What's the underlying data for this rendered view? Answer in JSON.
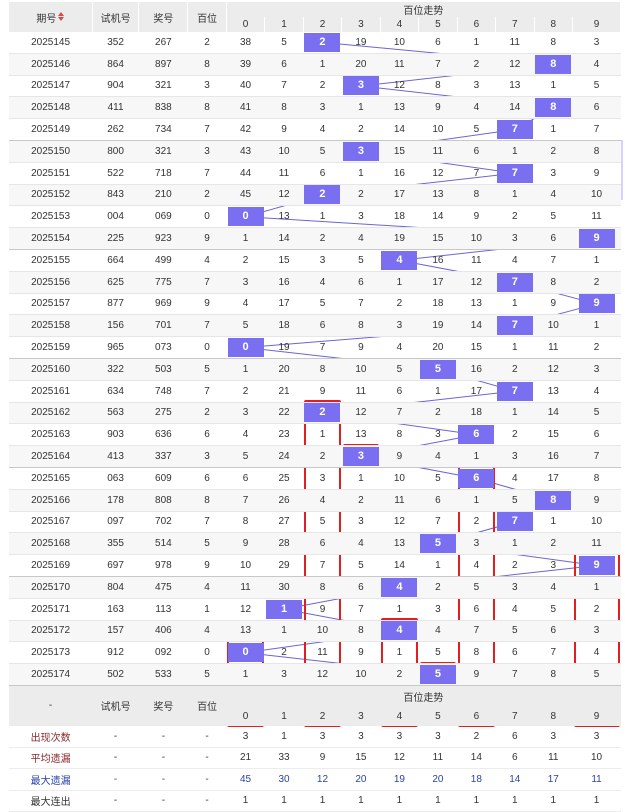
{
  "header": {
    "col_period": "期号",
    "col_test": "试机号",
    "col_prize": "奖号",
    "col_hundreds": "百位",
    "trend_title": "百位走势",
    "digits": [
      "0",
      "1",
      "2",
      "3",
      "4",
      "5",
      "6",
      "7",
      "8",
      "9"
    ]
  },
  "rows": [
    {
      "period": "2025145",
      "test": "352",
      "prize": "267",
      "h": "2",
      "cells": [
        "38",
        "5",
        "2",
        "19",
        "10",
        "6",
        "1",
        "11",
        "8",
        "3"
      ]
    },
    {
      "period": "2025146",
      "test": "864",
      "prize": "897",
      "h": "8",
      "cells": [
        "39",
        "6",
        "1",
        "20",
        "11",
        "7",
        "2",
        "12",
        "8",
        "4"
      ]
    },
    {
      "period": "2025147",
      "test": "904",
      "prize": "321",
      "h": "3",
      "cells": [
        "40",
        "7",
        "2",
        "3",
        "12",
        "8",
        "3",
        "13",
        "1",
        "5"
      ]
    },
    {
      "period": "2025148",
      "test": "411",
      "prize": "838",
      "h": "8",
      "cells": [
        "41",
        "8",
        "3",
        "1",
        "13",
        "9",
        "4",
        "14",
        "8",
        "6"
      ]
    },
    {
      "period": "2025149",
      "test": "262",
      "prize": "734",
      "h": "7",
      "cells": [
        "42",
        "9",
        "4",
        "2",
        "14",
        "10",
        "5",
        "7",
        "1",
        "7"
      ]
    },
    {
      "period": "2025150",
      "test": "800",
      "prize": "321",
      "h": "3",
      "cells": [
        "43",
        "10",
        "5",
        "3",
        "15",
        "11",
        "6",
        "1",
        "2",
        "8"
      ]
    },
    {
      "period": "2025151",
      "test": "522",
      "prize": "718",
      "h": "7",
      "cells": [
        "44",
        "11",
        "6",
        "1",
        "16",
        "12",
        "7",
        "7",
        "3",
        "9"
      ]
    },
    {
      "period": "2025152",
      "test": "843",
      "prize": "210",
      "h": "2",
      "cells": [
        "45",
        "12",
        "2",
        "2",
        "17",
        "13",
        "8",
        "1",
        "4",
        "10"
      ]
    },
    {
      "period": "2025153",
      "test": "004",
      "prize": "069",
      "h": "0",
      "cells": [
        "0",
        "13",
        "1",
        "3",
        "18",
        "14",
        "9",
        "2",
        "5",
        "11"
      ]
    },
    {
      "period": "2025154",
      "test": "225",
      "prize": "923",
      "h": "9",
      "cells": [
        "1",
        "14",
        "2",
        "4",
        "19",
        "15",
        "10",
        "3",
        "6",
        "9"
      ]
    },
    {
      "period": "2025155",
      "test": "664",
      "prize": "499",
      "h": "4",
      "cells": [
        "2",
        "15",
        "3",
        "5",
        "4",
        "16",
        "11",
        "4",
        "7",
        "1"
      ]
    },
    {
      "period": "2025156",
      "test": "625",
      "prize": "775",
      "h": "7",
      "cells": [
        "3",
        "16",
        "4",
        "6",
        "1",
        "17",
        "12",
        "7",
        "8",
        "2"
      ]
    },
    {
      "period": "2025157",
      "test": "877",
      "prize": "969",
      "h": "9",
      "cells": [
        "4",
        "17",
        "5",
        "7",
        "2",
        "18",
        "13",
        "1",
        "9",
        "9"
      ]
    },
    {
      "period": "2025158",
      "test": "156",
      "prize": "701",
      "h": "7",
      "cells": [
        "5",
        "18",
        "6",
        "8",
        "3",
        "19",
        "14",
        "7",
        "10",
        "1"
      ]
    },
    {
      "period": "2025159",
      "test": "965",
      "prize": "073",
      "h": "0",
      "cells": [
        "0",
        "19",
        "7",
        "9",
        "4",
        "20",
        "15",
        "1",
        "11",
        "2"
      ]
    },
    {
      "period": "2025160",
      "test": "322",
      "prize": "503",
      "h": "5",
      "cells": [
        "1",
        "20",
        "8",
        "10",
        "5",
        "5",
        "16",
        "2",
        "12",
        "3"
      ]
    },
    {
      "period": "2025161",
      "test": "634",
      "prize": "748",
      "h": "7",
      "cells": [
        "2",
        "21",
        "9",
        "11",
        "6",
        "1",
        "17",
        "7",
        "13",
        "4"
      ]
    },
    {
      "period": "2025162",
      "test": "563",
      "prize": "275",
      "h": "2",
      "cells": [
        "3",
        "22",
        "2",
        "12",
        "7",
        "2",
        "18",
        "1",
        "14",
        "5"
      ]
    },
    {
      "period": "2025163",
      "test": "903",
      "prize": "636",
      "h": "6",
      "cells": [
        "4",
        "23",
        "1",
        "13",
        "8",
        "3",
        "6",
        "2",
        "15",
        "6"
      ]
    },
    {
      "period": "2025164",
      "test": "413",
      "prize": "337",
      "h": "3",
      "cells": [
        "5",
        "24",
        "2",
        "3",
        "9",
        "4",
        "1",
        "3",
        "16",
        "7"
      ]
    },
    {
      "period": "2025165",
      "test": "063",
      "prize": "609",
      "h": "6",
      "cells": [
        "6",
        "25",
        "3",
        "1",
        "10",
        "5",
        "6",
        "4",
        "17",
        "8"
      ]
    },
    {
      "period": "2025166",
      "test": "178",
      "prize": "808",
      "h": "8",
      "cells": [
        "7",
        "26",
        "4",
        "2",
        "11",
        "6",
        "1",
        "5",
        "8",
        "9"
      ]
    },
    {
      "period": "2025167",
      "test": "097",
      "prize": "702",
      "h": "7",
      "cells": [
        "8",
        "27",
        "5",
        "3",
        "12",
        "7",
        "2",
        "7",
        "1",
        "10"
      ]
    },
    {
      "period": "2025168",
      "test": "355",
      "prize": "514",
      "h": "5",
      "cells": [
        "9",
        "28",
        "6",
        "4",
        "13",
        "5",
        "3",
        "1",
        "2",
        "11"
      ]
    },
    {
      "period": "2025169",
      "test": "697",
      "prize": "978",
      "h": "9",
      "cells": [
        "10",
        "29",
        "7",
        "5",
        "14",
        "1",
        "4",
        "2",
        "3",
        "9"
      ]
    },
    {
      "period": "2025170",
      "test": "804",
      "prize": "475",
      "h": "4",
      "cells": [
        "11",
        "30",
        "8",
        "6",
        "4",
        "2",
        "5",
        "3",
        "4",
        "1"
      ]
    },
    {
      "period": "2025171",
      "test": "163",
      "prize": "113",
      "h": "1",
      "cells": [
        "12",
        "1",
        "9",
        "7",
        "1",
        "3",
        "6",
        "4",
        "5",
        "2"
      ]
    },
    {
      "period": "2025172",
      "test": "157",
      "prize": "406",
      "h": "4",
      "cells": [
        "13",
        "1",
        "10",
        "8",
        "4",
        "4",
        "7",
        "5",
        "6",
        "3"
      ]
    },
    {
      "period": "2025173",
      "test": "912",
      "prize": "092",
      "h": "0",
      "cells": [
        "0",
        "2",
        "11",
        "9",
        "1",
        "5",
        "8",
        "6",
        "7",
        "4"
      ]
    },
    {
      "period": "2025174",
      "test": "502",
      "prize": "533",
      "h": "5",
      "cells": [
        "1",
        "3",
        "12",
        "10",
        "2",
        "5",
        "9",
        "7",
        "8",
        "5"
      ]
    }
  ],
  "footer_header": {
    "dash": "-",
    "col_test": "试机号",
    "col_prize": "奖号",
    "col_hundreds": "百位",
    "trend_title": "百位走势",
    "digits": [
      "0",
      "1",
      "2",
      "3",
      "4",
      "5",
      "6",
      "7",
      "8",
      "9"
    ]
  },
  "stats": [
    {
      "label": "出现次数",
      "a": "-",
      "b": "-",
      "c": "-",
      "vals": [
        "3",
        "1",
        "3",
        "3",
        "3",
        "3",
        "2",
        "6",
        "3",
        "3"
      ]
    },
    {
      "label": "平均遗漏",
      "a": "-",
      "b": "-",
      "c": "-",
      "vals": [
        "21",
        "33",
        "9",
        "15",
        "12",
        "11",
        "14",
        "6",
        "11",
        "10"
      ]
    },
    {
      "label": "最大遗漏",
      "a": "-",
      "b": "-",
      "c": "-",
      "vals": [
        "45",
        "30",
        "12",
        "20",
        "19",
        "20",
        "18",
        "14",
        "17",
        "11"
      ]
    },
    {
      "label": "最大连出",
      "a": "-",
      "b": "-",
      "c": "-",
      "vals": [
        "1",
        "1",
        "1",
        "1",
        "1",
        "1",
        "1",
        "1",
        "1",
        "1"
      ]
    }
  ],
  "colors": {
    "hit_bg": "#7a6ff0",
    "line": "#6b64d8",
    "highlight_box": "#e02020",
    "sort_indicator": "#e24444"
  },
  "highlighted_columns": [
    "2",
    "4",
    "6",
    "9",
    "0",
    "5"
  ]
}
